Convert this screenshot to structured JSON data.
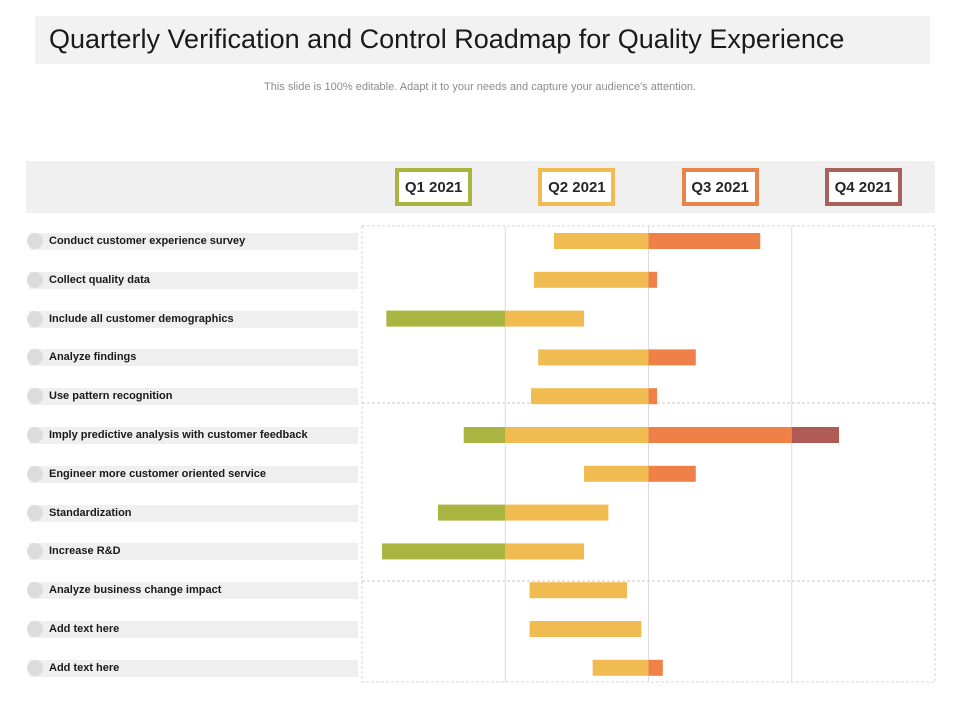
{
  "title": "Quarterly Verification and Control Roadmap for Quality Experience",
  "subtitle": "This slide is 100% editable. Adapt it to your needs and capture your audience's attention.",
  "colors": {
    "q1": "#a9b540",
    "q2": "#f0bc52",
    "q3": "#ee8048",
    "q4": "#b05a55",
    "q1_border": "#a9b540",
    "q2_border": "#f0bc52",
    "q3_border": "#e8834a",
    "q4_border": "#a9615d"
  },
  "quarters": [
    {
      "label": "Q1 2021",
      "color": "#a9b540"
    },
    {
      "label": "Q2 2021",
      "color": "#f0bc52"
    },
    {
      "label": "Q3 2021",
      "color": "#e8834a"
    },
    {
      "label": "Q4 2021",
      "color": "#a9615d"
    }
  ],
  "chart_data": {
    "type": "bar",
    "subtype": "gantt",
    "title": "Quarterly Verification and Control Roadmap for Quality Experience",
    "x_axis_categories": [
      "Q1 2021",
      "Q2 2021",
      "Q3 2021",
      "Q4 2021"
    ],
    "x_unit": "quarters (0 = start of Q1 2021, 4 = end of Q4 2021)",
    "grid": true,
    "tasks": [
      {
        "label": "Conduct customer experience survey",
        "start": 1.34,
        "end": 2.78
      },
      {
        "label": "Collect quality data",
        "start": 1.2,
        "end": 2.06
      },
      {
        "label": "Include all customer demographics",
        "start": 0.17,
        "end": 1.55
      },
      {
        "label": "Analyze findings",
        "start": 1.23,
        "end": 2.33
      },
      {
        "label": "Use pattern recognition",
        "start": 1.18,
        "end": 2.06
      },
      {
        "label": "Imply predictive analysis with customer feedback",
        "start": 0.71,
        "end": 3.33
      },
      {
        "label": "Engineer more customer oriented service",
        "start": 1.55,
        "end": 2.33
      },
      {
        "label": "Standardization",
        "start": 0.53,
        "end": 1.72
      },
      {
        "label": "Increase R&D",
        "start": 0.14,
        "end": 1.55
      },
      {
        "label": "Analyze business change impact",
        "start": 1.17,
        "end": 1.85
      },
      {
        "label": "Add text here",
        "start": 1.17,
        "end": 1.95
      },
      {
        "label": "Add text here",
        "start": 1.61,
        "end": 2.1
      }
    ]
  }
}
